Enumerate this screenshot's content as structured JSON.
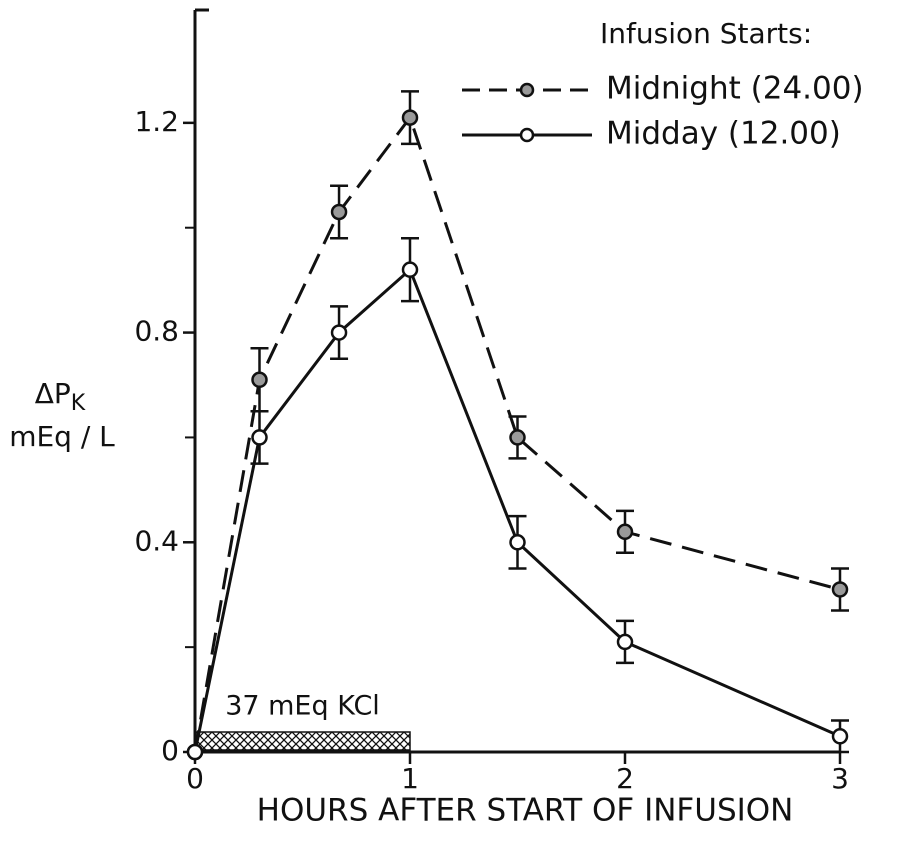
{
  "chart_data": {
    "type": "line",
    "legend_title": "Infusion Starts:",
    "x_label": "HOURS AFTER START OF INFUSION",
    "y_label": {
      "symbol": "ΔP",
      "subscript": "K",
      "unit": "mEq / L"
    },
    "xlim": [
      0,
      3
    ],
    "xticks": [
      0,
      1,
      2,
      3
    ],
    "ylim": [
      0,
      1.4
    ],
    "yticks": [
      0,
      0.4,
      0.8,
      1.2
    ],
    "yminorticks": [
      0.2,
      0.6,
      1.0
    ],
    "legend": "upper right",
    "annotation": {
      "text": "37 mEq KCl",
      "start": 0,
      "end": 1
    },
    "series": [
      {
        "name": "Midnight (24.00)",
        "color": "#111111",
        "dash": true,
        "marker_fill": "#9a9a9a",
        "x": [
          0,
          0.3,
          0.67,
          1,
          1.5,
          2,
          3
        ],
        "values": [
          0,
          0.71,
          1.03,
          1.21,
          0.6,
          0.42,
          0.31
        ],
        "errors": [
          null,
          0.06,
          0.05,
          0.05,
          0.04,
          0.04,
          0.04
        ]
      },
      {
        "name": "Midday (12.00)",
        "color": "#111111",
        "dash": false,
        "marker_fill": "#ffffff",
        "x": [
          0,
          0.3,
          0.67,
          1,
          1.5,
          2,
          3
        ],
        "values": [
          0,
          0.6,
          0.8,
          0.92,
          0.4,
          0.21,
          0.03
        ],
        "errors": [
          null,
          0.05,
          0.05,
          0.06,
          0.05,
          0.04,
          0.03
        ]
      }
    ]
  }
}
